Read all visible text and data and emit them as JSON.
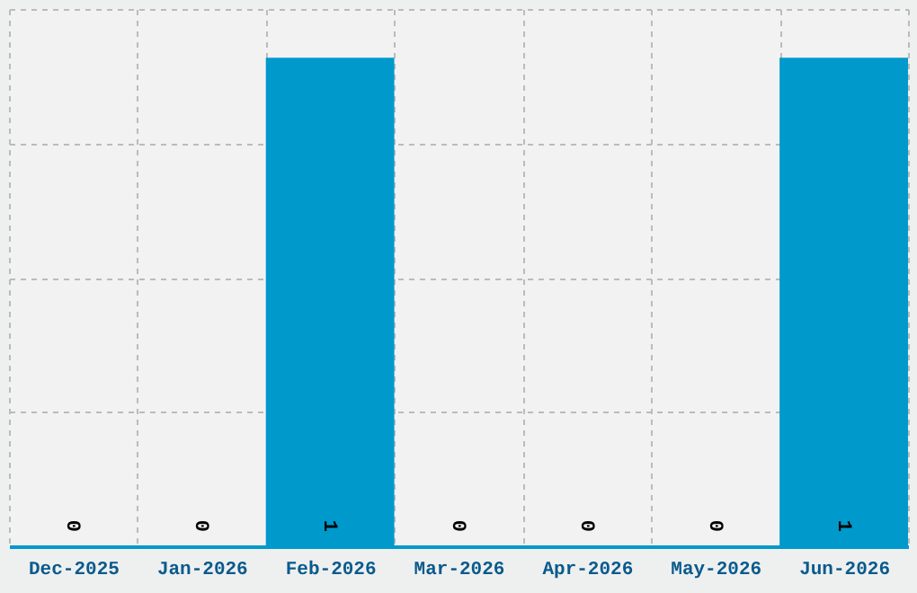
{
  "chart_data": {
    "type": "bar",
    "categories": [
      "Dec-2025",
      "Jan-2026",
      "Feb-2026",
      "Mar-2026",
      "Apr-2026",
      "May-2026",
      "Jun-2026"
    ],
    "values": [
      0,
      0,
      1,
      0,
      0,
      0,
      1
    ],
    "color": "#0099cc",
    "ylim": [
      0,
      1.1
    ],
    "yticks": [
      {
        "value": 0,
        "label": null
      },
      {
        "value": 0.275,
        "label": null
      },
      {
        "value": 0.55,
        "label": null
      },
      {
        "value": 0.825,
        "label": null
      },
      {
        "value": 1.1,
        "label": null
      }
    ],
    "grid": true,
    "data_labels": true,
    "tick_labels": "x"
  }
}
